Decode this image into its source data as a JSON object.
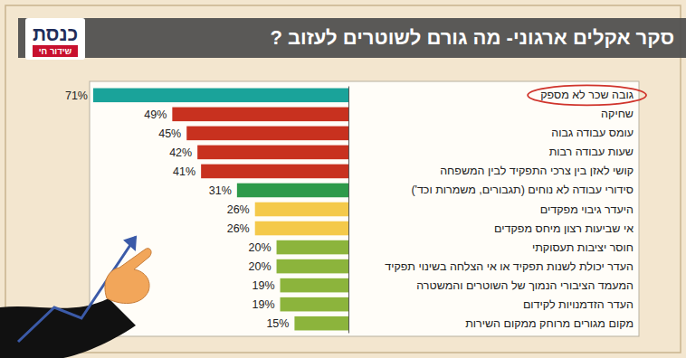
{
  "chart_data": {
    "type": "bar",
    "orientation": "horizontal",
    "title": "סקר אקלים ארגוני- מה גורם לשוטרים לעזוב ?",
    "annotations": [
      "כנסת",
      "שידור חי"
    ],
    "categories": [
      "גובה שכר לא מספק",
      "שחיקה",
      "עומס עבודה גבוה",
      "שעות עבודה רבות",
      "קושי לאזן בין צרכי התפקיד לבין המשפחה",
      "סידורי עבודה לא נוחים (תגבורים, משמרות וכד')",
      "היעדר גיבוי מפקדים",
      "אי שביעות רצון מיחס מפקדים",
      "חוסר יציבות תעסוקתי",
      "העדר יכולת לשנות תפקיד או אי הצלחה בשינוי תפקיד",
      "המעמד הציבורי הנמוך של השוטרים והמשטרה",
      "העדר הזדמנויות לקידום",
      "מקום מגורים מרוחק ממקום השירות"
    ],
    "values": [
      71,
      49,
      45,
      42,
      41,
      31,
      26,
      26,
      20,
      20,
      19,
      19,
      15
    ],
    "value_labels": [
      "71%",
      "49%",
      "45%",
      "42%",
      "41%",
      "31%",
      "26%",
      "26%",
      "20%",
      "20%",
      "19%",
      "19%",
      "15%"
    ],
    "colors": [
      "#1aa39a",
      "#c8311f",
      "#c8311f",
      "#c8311f",
      "#c8311f",
      "#2e9a4a",
      "#f4c94a",
      "#f4c94a",
      "#8cb43c",
      "#8cb43c",
      "#8cb43c",
      "#8cb43c",
      "#8cb43c"
    ],
    "xlim": [
      0,
      72
    ],
    "data_labels": true,
    "tick_labels": "y",
    "grid": false
  }
}
